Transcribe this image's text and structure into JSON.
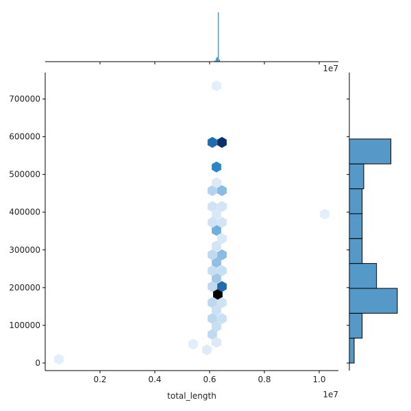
{
  "chart_data": {
    "type": "hexbin-jointplot",
    "xlabel": "total_length",
    "ylabel": "",
    "x_offset_label": "1e7",
    "top_offset_label": "1e7",
    "xlim": [
      0.0,
      1.07
    ],
    "ylim": [
      -20000,
      770000
    ],
    "x_ticks": [
      0.2,
      0.4,
      0.6,
      0.8,
      1.0
    ],
    "x_tick_labels": [
      "0.2",
      "0.4",
      "0.6",
      "0.8",
      "1.0"
    ],
    "y_ticks": [
      0,
      100000,
      200000,
      300000,
      400000,
      500000,
      600000,
      700000
    ],
    "y_tick_labels": [
      "0",
      "100000",
      "200000",
      "300000",
      "400000",
      "500000",
      "600000",
      "700000"
    ],
    "grid": false,
    "hexbins": [
      {
        "x": 0.63,
        "y": 182000,
        "density": 1.0
      },
      {
        "x": 0.645,
        "y": 585000,
        "density": 0.88
      },
      {
        "x": 0.61,
        "y": 585000,
        "density": 0.62
      },
      {
        "x": 0.645,
        "y": 203000,
        "density": 0.62
      },
      {
        "x": 0.625,
        "y": 520000,
        "density": 0.5
      },
      {
        "x": 0.625,
        "y": 352000,
        "density": 0.32
      },
      {
        "x": 0.645,
        "y": 457000,
        "density": 0.26
      },
      {
        "x": 0.645,
        "y": 287000,
        "density": 0.26
      },
      {
        "x": 0.625,
        "y": 267000,
        "density": 0.24
      },
      {
        "x": 0.625,
        "y": 225000,
        "density": 0.2
      },
      {
        "x": 0.61,
        "y": 203000,
        "density": 0.12
      },
      {
        "x": 0.61,
        "y": 457000,
        "density": 0.15
      },
      {
        "x": 0.61,
        "y": 287000,
        "density": 0.12
      },
      {
        "x": 0.61,
        "y": 245000,
        "density": 0.1
      },
      {
        "x": 0.645,
        "y": 245000,
        "density": 0.1
      },
      {
        "x": 0.61,
        "y": 160000,
        "density": 0.13
      },
      {
        "x": 0.61,
        "y": 118000,
        "density": 0.13
      },
      {
        "x": 0.61,
        "y": 76000,
        "density": 0.12
      },
      {
        "x": 0.625,
        "y": 97000,
        "density": 0.1
      },
      {
        "x": 0.645,
        "y": 118000,
        "density": 0.09
      },
      {
        "x": 0.625,
        "y": 140000,
        "density": 0.09
      },
      {
        "x": 0.645,
        "y": 160000,
        "density": 0.08
      },
      {
        "x": 0.61,
        "y": 415000,
        "density": 0.08
      },
      {
        "x": 0.645,
        "y": 415000,
        "density": 0.07
      },
      {
        "x": 0.61,
        "y": 373000,
        "density": 0.08
      },
      {
        "x": 0.645,
        "y": 373000,
        "density": 0.07
      },
      {
        "x": 0.625,
        "y": 395000,
        "density": 0.06
      },
      {
        "x": 0.625,
        "y": 310000,
        "density": 0.07
      },
      {
        "x": 0.645,
        "y": 330000,
        "density": 0.06
      },
      {
        "x": 0.625,
        "y": 478000,
        "density": 0.05
      },
      {
        "x": 0.625,
        "y": 55000,
        "density": 0.05
      },
      {
        "x": 0.59,
        "y": 35000,
        "density": 0.04
      },
      {
        "x": 0.54,
        "y": 50000,
        "density": 0.03
      },
      {
        "x": 0.625,
        "y": 735000,
        "density": 0.03
      },
      {
        "x": 0.05,
        "y": 10000,
        "density": 0.03
      },
      {
        "x": 1.02,
        "y": 395000,
        "density": 0.03
      }
    ],
    "y_marginal_histogram": {
      "bin_edges": [
        0,
        66000,
        132000,
        198000,
        264000,
        330000,
        396000,
        462000,
        528000,
        594000
      ],
      "counts": [
        3,
        8,
        30,
        17,
        8,
        8,
        8,
        9,
        26
      ]
    },
    "x_marginal_histogram": [
      {
        "x": 0.62,
        "count": 2
      },
      {
        "x": 0.625,
        "count": 5
      },
      {
        "x": 0.628,
        "count": 7
      },
      {
        "x": 0.632,
        "count": 72
      },
      {
        "x": 0.636,
        "count": 3
      }
    ],
    "colors": {
      "hex_light": "#eef5fc",
      "hex_mid": "#2b85cc",
      "hex_dark": "#08306b",
      "hex_max": "#000000",
      "histogram_fill": "#5499c7",
      "histogram_edge": "#000000",
      "axis": "#000000"
    }
  }
}
